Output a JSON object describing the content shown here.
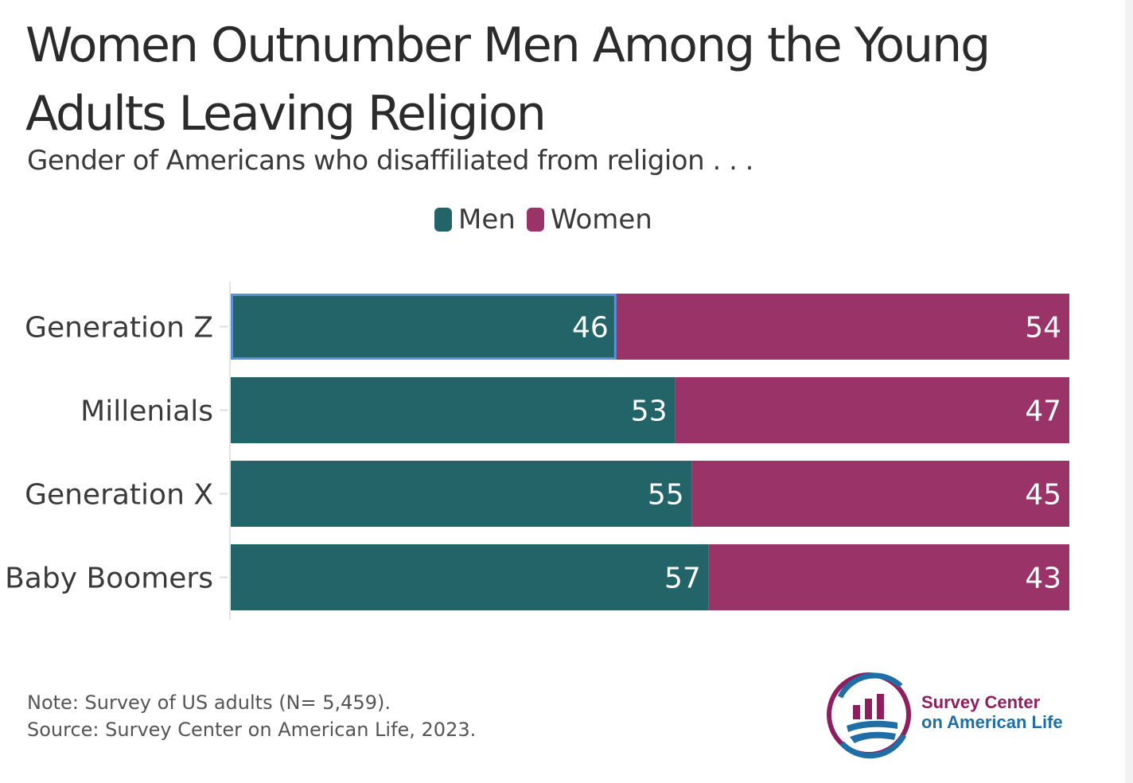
{
  "header": {
    "title": "Women Outnumber Men Among the Young Adults Leaving Religion",
    "subtitle": "Gender of Americans who disaffiliated from religion . . ."
  },
  "legend": {
    "men": "Men",
    "women": "Women"
  },
  "colors": {
    "men": "#236468",
    "women": "#9a3468",
    "selection": "#5b8fd8"
  },
  "chart_data": {
    "type": "bar",
    "orientation": "horizontal",
    "stacked": true,
    "categories": [
      "Generation Z",
      "Millenials",
      "Generation X",
      "Baby Boomers"
    ],
    "series": [
      {
        "name": "Men",
        "values": [
          46,
          53,
          55,
          57
        ]
      },
      {
        "name": "Women",
        "values": [
          54,
          47,
          45,
          43
        ]
      }
    ],
    "xlim": [
      0,
      100
    ],
    "legend_position": "top-center",
    "grid": false
  },
  "footer": {
    "note": "Note: Survey of US adults (N= 5,459).",
    "source": "Source: Survey Center on American Life, 2023."
  },
  "logo": {
    "line1": "Survey Center",
    "line2": "on American Life"
  }
}
